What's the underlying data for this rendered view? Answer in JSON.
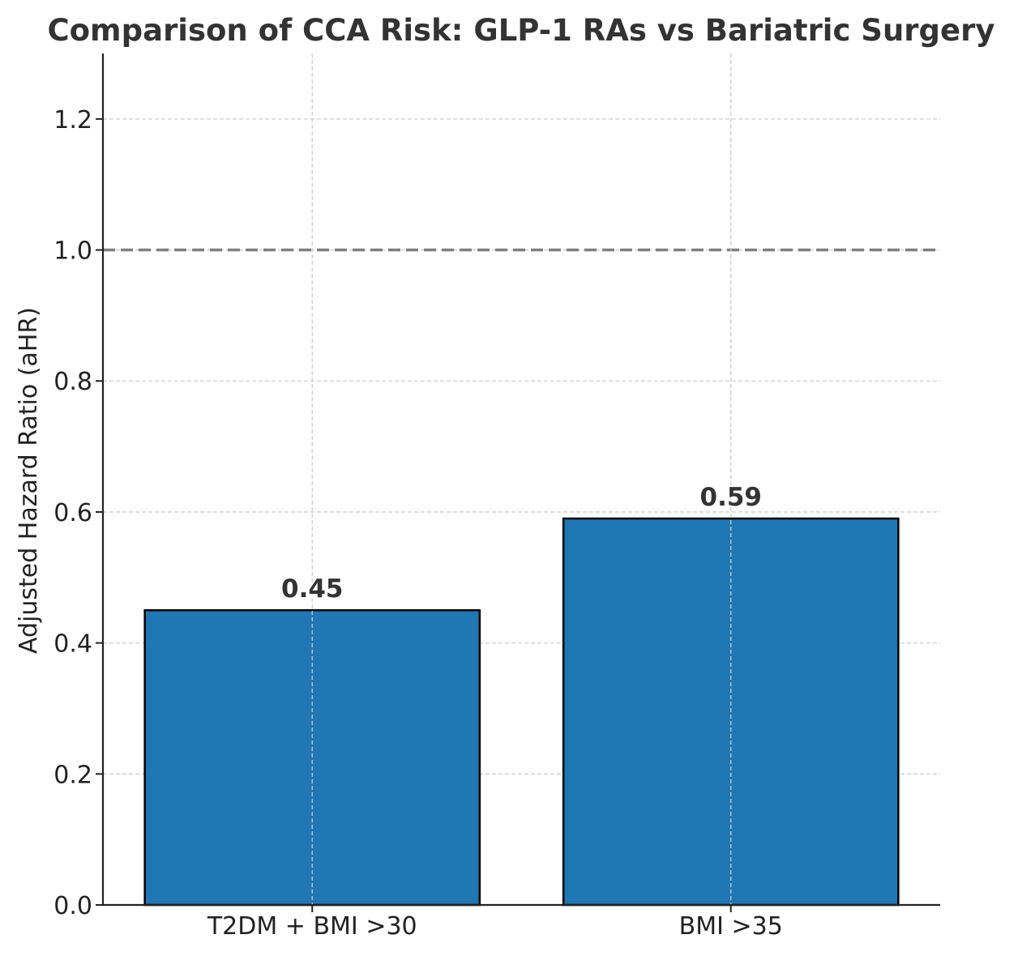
{
  "chart_data": {
    "type": "bar",
    "title": "Comparison of CCA Risk: GLP-1 RAs vs Bariatric Surgery",
    "xlabel": "",
    "ylabel": "Adjusted Hazard Ratio (aHR)",
    "categories": [
      "T2DM + BMI >30",
      "BMI >35"
    ],
    "values": [
      0.45,
      0.59
    ],
    "data_labels": [
      "0.45",
      "0.59"
    ],
    "ylim": [
      0,
      1.3
    ],
    "yticks": [
      0.0,
      0.2,
      0.4,
      0.6,
      0.8,
      1.0,
      1.2
    ],
    "ytick_labels": [
      "0.0",
      "0.2",
      "0.4",
      "0.6",
      "0.8",
      "1.0",
      "1.2"
    ],
    "reference_line": 1.0,
    "grid": true,
    "bar_color": "#1f77b4",
    "bar_edge_color": "#000000",
    "reference_line_color": "#808080"
  }
}
